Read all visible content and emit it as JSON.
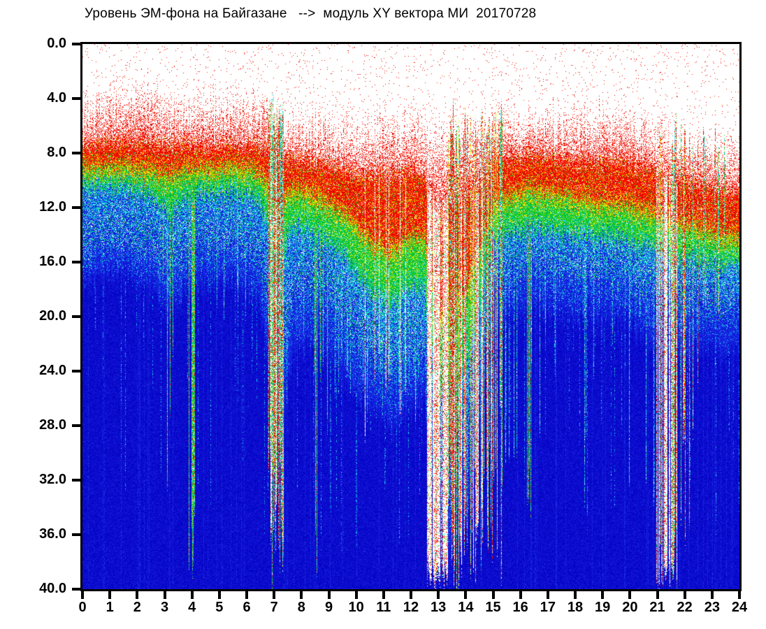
{
  "title": {
    "text": "Уровень ЭМ-фона на Байгазане   -->  модуль XY вектора МИ  20170728"
  },
  "chart_data": {
    "type": "heatmap",
    "subtype": "daily EM-background spectrogram",
    "title": "Уровень ЭМ-фона на Байгазане --> модуль XY вектора МИ 20170728",
    "date": "20170728",
    "grid": false,
    "legend": "none",
    "plot_background": "#FFFFFF",
    "x": {
      "min": 0,
      "max": 24,
      "tick_step": 1,
      "tick_labels": [
        "0",
        "1",
        "2",
        "3",
        "4",
        "5",
        "6",
        "7",
        "8",
        "9",
        "10",
        "11",
        "12",
        "13",
        "14",
        "15",
        "16",
        "17",
        "18",
        "19",
        "20",
        "21",
        "22",
        "23",
        "24"
      ]
    },
    "y": {
      "min": 0,
      "max": 40,
      "tick_step": 4,
      "direction": "down",
      "tick_labels": [
        "0.0",
        "4.0",
        "8.0",
        "12.0",
        "16.0",
        "20.0",
        "24.0",
        "28.0",
        "32.0",
        "36.0",
        "40.0"
      ]
    },
    "colormap": {
      "white": [
        "#FFFFFF"
      ],
      "red": [
        "#EE1000",
        "#FF2A00",
        "#D40000",
        "#FF0000"
      ],
      "orange": [
        "#FF8A00"
      ],
      "yellow": [
        "#FFEA00",
        "#EEF000"
      ],
      "green": [
        "#0FC41E",
        "#00B83C",
        "#2ED412",
        "#00CC44"
      ],
      "cyan": [
        "#00C8D8",
        "#2BD8EE",
        "#00B4E8",
        "#55E0E8"
      ],
      "blue": [
        "#1022DC",
        "#0A16D2",
        "#2233EE"
      ],
      "deep": [
        "#0B0BCB",
        "#0202C4",
        "#1515D8"
      ]
    },
    "profile_controls": {
      "columns": [
        "hour",
        "red_speckle_top",
        "red_band_top",
        "red_green_boundary",
        "green_cyan_boundary",
        "cyan_blue_boundary",
        "deep_blue_top"
      ],
      "rows": [
        [
          0.0,
          5.0,
          7.4,
          8.8,
          10.4,
          15.2,
          17.5
        ],
        [
          1.0,
          3.8,
          7.2,
          8.8,
          10.4,
          14.8,
          17.0
        ],
        [
          2.0,
          3.2,
          7.1,
          8.8,
          10.6,
          14.8,
          17.0
        ],
        [
          2.7,
          3.8,
          7.2,
          9.0,
          11.2,
          15.5,
          18.0
        ],
        [
          3.2,
          4.5,
          7.4,
          9.4,
          12.5,
          17.0,
          20.0
        ],
        [
          3.7,
          4.8,
          7.4,
          9.0,
          11.2,
          15.5,
          18.0
        ],
        [
          4.5,
          4.2,
          7.5,
          8.9,
          10.8,
          15.0,
          17.5
        ],
        [
          5.5,
          4.2,
          7.4,
          8.8,
          10.8,
          15.0,
          17.5
        ],
        [
          6.5,
          4.6,
          7.6,
          9.2,
          11.5,
          16.0,
          19.0
        ],
        [
          7.1,
          5.2,
          8.2,
          11.5,
          16.0,
          24.0,
          30.0
        ],
        [
          7.7,
          5.5,
          8.5,
          10.5,
          13.5,
          19.0,
          23.0
        ],
        [
          8.3,
          5.5,
          8.6,
          10.8,
          13.5,
          18.0,
          22.0
        ],
        [
          9.0,
          6.0,
          8.8,
          11.5,
          14.5,
          19.0,
          23.0
        ],
        [
          9.8,
          6.2,
          9.4,
          12.5,
          16.0,
          21.0,
          25.0
        ],
        [
          10.6,
          6.4,
          9.6,
          14.5,
          18.5,
          23.0,
          27.0
        ],
        [
          11.3,
          5.8,
          9.6,
          15.0,
          19.0,
          24.0,
          28.0
        ],
        [
          12.0,
          5.8,
          9.4,
          14.0,
          18.0,
          23.0,
          27.0
        ],
        [
          12.5,
          6.2,
          10.0,
          14.0,
          18.0,
          23.0,
          26.0
        ],
        [
          13.0,
          6.5,
          12.0,
          20.0,
          26.0,
          32.0,
          38.0
        ],
        [
          14.0,
          6.0,
          11.0,
          18.0,
          24.0,
          30.0,
          36.0
        ],
        [
          15.0,
          5.6,
          8.8,
          11.5,
          14.5,
          18.0,
          21.0
        ],
        [
          16.0,
          5.4,
          8.2,
          10.6,
          13.5,
          16.5,
          19.5
        ],
        [
          17.0,
          5.2,
          8.2,
          10.6,
          13.5,
          16.5,
          19.5
        ],
        [
          18.0,
          5.6,
          8.6,
          11.0,
          14.0,
          17.0,
          20.0
        ],
        [
          19.0,
          5.2,
          8.6,
          11.5,
          14.2,
          17.0,
          20.0
        ],
        [
          20.0,
          5.6,
          8.8,
          11.6,
          14.5,
          17.5,
          20.5
        ],
        [
          20.8,
          6.2,
          9.2,
          12.2,
          15.0,
          18.5,
          22.0
        ],
        [
          21.6,
          7.0,
          10.0,
          13.0,
          16.0,
          19.5,
          23.0
        ],
        [
          22.2,
          7.0,
          10.0,
          13.0,
          15.8,
          19.0,
          22.5
        ],
        [
          23.0,
          7.5,
          10.5,
          13.5,
          16.0,
          19.0,
          22.0
        ],
        [
          24.0,
          8.0,
          11.0,
          14.0,
          16.2,
          19.2,
          22.5
        ]
      ]
    },
    "events": [
      {
        "h0": 2.85,
        "h1": 3.35,
        "kind": "green",
        "p": 0.28,
        "d0": 16,
        "d1": 40
      },
      {
        "h0": 3.88,
        "h1": 4.1,
        "kind": "green",
        "p": 0.55,
        "d0": 34,
        "d1": 40
      },
      {
        "h0": 4.3,
        "h1": 6.7,
        "kind": "deep",
        "p": 0.06,
        "d0": 17,
        "d1": 22
      },
      {
        "h0": 6.8,
        "h1": 7.35,
        "kind": "storm",
        "p": 0.75,
        "d0": 28,
        "d1": 40
      },
      {
        "h0": 6.85,
        "h1": 7.3,
        "kind": "white",
        "p": 0.3,
        "d0": 30,
        "d1": 40
      },
      {
        "h0": 7.35,
        "h1": 8.1,
        "kind": "deep",
        "p": 0.22,
        "d0": 18,
        "d1": 28
      },
      {
        "h0": 8.4,
        "h1": 9.0,
        "kind": "green",
        "p": 0.3,
        "d0": 22,
        "d1": 40
      },
      {
        "h0": 9.2,
        "h1": 10.1,
        "kind": "deep",
        "p": 0.28,
        "d0": 17,
        "d1": 26
      },
      {
        "h0": 10.1,
        "h1": 12.6,
        "kind": "deep",
        "p": 0.38,
        "d0": 18,
        "d1": 28
      },
      {
        "h0": 10.3,
        "h1": 12.4,
        "kind": "white",
        "p": 0.1,
        "d0": 22,
        "d1": 34
      },
      {
        "h0": 12.6,
        "h1": 13.35,
        "kind": "white",
        "p": 0.88,
        "d0": 38,
        "d1": 40
      },
      {
        "h0": 13.35,
        "h1": 14.65,
        "kind": "storm",
        "p": 0.5,
        "d0": 30,
        "d1": 40
      },
      {
        "h0": 13.35,
        "h1": 14.65,
        "kind": "white",
        "p": 0.45,
        "d0": 34,
        "d1": 40
      },
      {
        "h0": 14.65,
        "h1": 15.35,
        "kind": "storm",
        "p": 0.45,
        "d0": 26,
        "d1": 40
      },
      {
        "h0": 15.35,
        "h1": 20.9,
        "kind": "deep",
        "p": 0.1,
        "d0": 18,
        "d1": 34
      },
      {
        "h0": 16.25,
        "h1": 16.55,
        "kind": "green",
        "p": 0.35,
        "d0": 30,
        "d1": 40
      },
      {
        "h0": 20.9,
        "h1": 21.75,
        "kind": "white",
        "p": 0.55,
        "d0": 38,
        "d1": 40
      },
      {
        "h0": 20.95,
        "h1": 21.75,
        "kind": "storm",
        "p": 0.3,
        "d0": 30,
        "d1": 40
      },
      {
        "h0": 21.8,
        "h1": 22.5,
        "kind": "storm",
        "p": 0.35,
        "d0": 22,
        "d1": 40
      },
      {
        "h0": 22.55,
        "h1": 23.95,
        "kind": "storm",
        "p": 0.22,
        "d0": 14,
        "d1": 20
      },
      {
        "h0": 22.5,
        "h1": 24.0,
        "kind": "deep",
        "p": 0.08,
        "d0": 17,
        "d1": 23
      }
    ],
    "render_seed": 20170728
  }
}
